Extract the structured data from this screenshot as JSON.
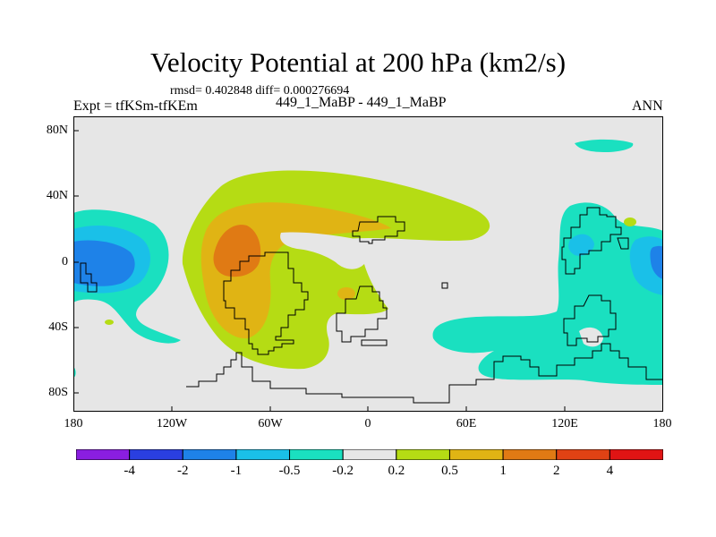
{
  "title": "Velocity Potential at 200 hPa (km2/s)",
  "stats": "rmsd= 0.402848 diff= 0.000276694",
  "expt": "Expt = tfKSm-tfKEm",
  "case": "449_1_MaBP - 449_1_MaBP",
  "season": "ANN",
  "axes": {
    "lat_labels": [
      "80N",
      "40N",
      "0",
      "40S",
      "80S"
    ],
    "lon_labels": [
      "180",
      "120W",
      "60W",
      "0",
      "60E",
      "120E",
      "180"
    ]
  },
  "colorbar": {
    "colors": [
      "#8a1ee0",
      "#2a3fe0",
      "#1e82e8",
      "#1ac0e8",
      "#1ae0c0",
      "#e6e6e6",
      "#b5dc14",
      "#e0b414",
      "#e07a14",
      "#e04214",
      "#e01414"
    ],
    "labels": [
      "-4",
      "-2",
      "-1",
      "-0.5",
      "-0.2",
      "0.2",
      "0.5",
      "1",
      "2",
      "4"
    ]
  },
  "field_colors": {
    "background": "#e6e6e6",
    "neg_0_2": "#1ae0c0",
    "neg_0_5": "#1ac0e8",
    "neg_1": "#1e82e8",
    "pos_0_2": "#b5dc14",
    "pos_0_5": "#e0b414",
    "pos_1": "#e07a14"
  }
}
